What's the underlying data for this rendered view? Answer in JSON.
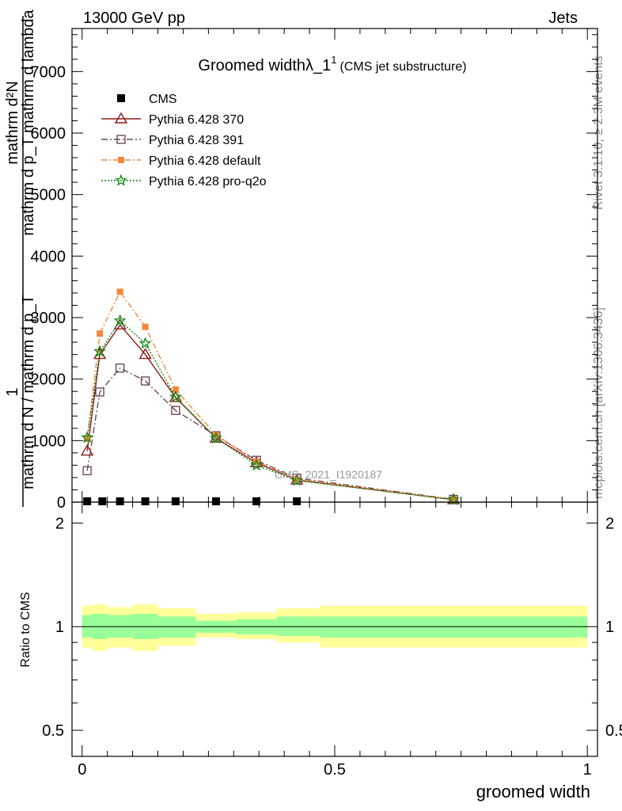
{
  "header": {
    "energy_label": "13000 GeV pp",
    "category_label": "Jets"
  },
  "side_labels": {
    "rivet": "Rivet 3.1.10, ≥ 2.3M events",
    "mcplots": "mcplots.cern.ch [arXiv:1306.3436]"
  },
  "colors": {
    "cms": "#000000",
    "p370": "#8b1a1a",
    "p391": "#6e4a5e",
    "pdefault": "#f5883a",
    "pq2o": "#0f8a0f",
    "band_inner": "#99ff99",
    "band_outer": "#ffff99"
  },
  "chart_data": [
    {
      "type": "line",
      "title_main": "Groomed widthλ_1",
      "title_sup": "1",
      "title_sub": "(CMS jet substructure)",
      "ylabel_top": "mathrm d²N",
      "ylabel_top2": "mathrm d p_T mathrm d lambda",
      "ylabel_bottom": "1",
      "ylabel_bottom2": "mathrm d N / mathrm d p_T",
      "watermark": "CMS_2021_I1920187",
      "xlim": [
        -0.02,
        1.02
      ],
      "ylim": [
        0,
        7700
      ],
      "yticks": [
        {
          "v": 0,
          "label": "0"
        },
        {
          "v": 1000,
          "label": "1000"
        },
        {
          "v": 2000,
          "label": "2000"
        },
        {
          "v": 3000,
          "label": "3000"
        },
        {
          "v": 4000,
          "label": "4000"
        },
        {
          "v": 5000,
          "label": "5000"
        },
        {
          "v": 6000,
          "label": "6000"
        },
        {
          "v": 7000,
          "label": "7000"
        }
      ],
      "legend_position": "top-left",
      "series": [
        {
          "name": "CMS",
          "key": "cms",
          "marker": "square",
          "x": [
            0.01,
            0.04,
            0.075,
            0.125,
            0.185,
            0.265,
            0.345,
            0.425
          ],
          "y": [
            0,
            0,
            0,
            0,
            0,
            0,
            0,
            0
          ]
        },
        {
          "name": "Pythia 6.428 370",
          "key": "p370",
          "marker": "triangle",
          "dash": "",
          "x": [
            0.01,
            0.035,
            0.075,
            0.125,
            0.185,
            0.265,
            0.345,
            0.425,
            0.735
          ],
          "y": [
            830,
            2400,
            2880,
            2400,
            1700,
            1040,
            640,
            360,
            40
          ]
        },
        {
          "name": "Pythia 6.428 391",
          "key": "p391",
          "marker": "opensquare",
          "dash": "8,3,2,3",
          "x": [
            0.01,
            0.035,
            0.075,
            0.125,
            0.185,
            0.265,
            0.345,
            0.425,
            0.735
          ],
          "y": [
            510,
            1790,
            2180,
            1970,
            1490,
            1080,
            680,
            390,
            45
          ]
        },
        {
          "name": "Pythia 6.428 default",
          "key": "pdefault",
          "marker": "filledsquare",
          "dash": "7,3,2,3",
          "x": [
            0.01,
            0.035,
            0.075,
            0.125,
            0.185,
            0.265,
            0.345,
            0.425,
            0.735
          ],
          "y": [
            1030,
            2740,
            3420,
            2850,
            1830,
            1090,
            660,
            370,
            45
          ]
        },
        {
          "name": "Pythia 6.428 pro-q2o",
          "key": "pq2o",
          "marker": "star",
          "dash": "2,2",
          "x": [
            0.01,
            0.035,
            0.075,
            0.125,
            0.185,
            0.265,
            0.345,
            0.425,
            0.735
          ],
          "y": [
            1050,
            2450,
            2950,
            2580,
            1710,
            1040,
            600,
            350,
            40
          ]
        }
      ]
    },
    {
      "type": "area",
      "ylabel": "Ratio to CMS",
      "xlabel": "groomed width",
      "ylim": [
        0.42,
        2.3
      ],
      "xlim": [
        -0.02,
        1.02
      ],
      "yticks": [
        {
          "v": 0.5,
          "label": "0.5"
        },
        {
          "v": 1,
          "label": "1"
        },
        {
          "v": 2,
          "label": "2"
        }
      ],
      "xticks": [
        {
          "v": 0,
          "label": "0"
        },
        {
          "v": 0.5,
          "label": "0.5"
        },
        {
          "v": 1,
          "label": "1"
        }
      ],
      "bands": [
        {
          "x0": 0.0,
          "x1": 0.02,
          "inner": [
            0.93,
            1.08
          ],
          "outer": [
            0.87,
            1.15
          ]
        },
        {
          "x0": 0.02,
          "x1": 0.05,
          "inner": [
            0.92,
            1.09
          ],
          "outer": [
            0.85,
            1.16
          ]
        },
        {
          "x0": 0.05,
          "x1": 0.1,
          "inner": [
            0.93,
            1.08
          ],
          "outer": [
            0.87,
            1.14
          ]
        },
        {
          "x0": 0.1,
          "x1": 0.15,
          "inner": [
            0.92,
            1.09
          ],
          "outer": [
            0.85,
            1.16
          ]
        },
        {
          "x0": 0.15,
          "x1": 0.225,
          "inner": [
            0.93,
            1.07
          ],
          "outer": [
            0.88,
            1.13
          ]
        },
        {
          "x0": 0.225,
          "x1": 0.305,
          "inner": [
            0.96,
            1.04
          ],
          "outer": [
            0.93,
            1.09
          ]
        },
        {
          "x0": 0.305,
          "x1": 0.385,
          "inner": [
            0.95,
            1.05
          ],
          "outer": [
            0.92,
            1.1
          ]
        },
        {
          "x0": 0.385,
          "x1": 0.47,
          "inner": [
            0.94,
            1.07
          ],
          "outer": [
            0.9,
            1.13
          ]
        },
        {
          "x0": 0.47,
          "x1": 1.0,
          "inner": [
            0.93,
            1.07
          ],
          "outer": [
            0.87,
            1.15
          ]
        }
      ],
      "reference": 1
    }
  ]
}
